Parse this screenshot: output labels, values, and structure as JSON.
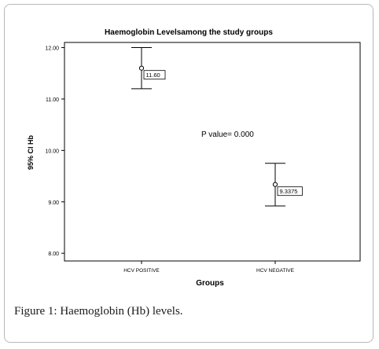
{
  "chart_data": {
    "type": "errorbar",
    "title": "Haemoglobin Levelsamong the study groups",
    "xlabel": "Groups",
    "ylabel": "95% CI Hb",
    "categories": [
      "HCV POSITIVE",
      "HCV NEGATIVE"
    ],
    "series": [
      {
        "means": [
          11.6,
          9.3375
        ],
        "lower": [
          11.2,
          8.92
        ],
        "upper": [
          12.0,
          9.75
        ],
        "point_labels": [
          "11.60",
          "9.3375"
        ]
      }
    ],
    "ylim": [
      7.85,
      12.1
    ],
    "yticks": [
      "12.00",
      "11.00",
      "10.00",
      "9.00",
      "8.00"
    ],
    "ytick_values": [
      12,
      11,
      10,
      9,
      8
    ],
    "annotation": "P  value= 0.000",
    "grid": false,
    "legend": "none"
  },
  "caption": {
    "label": "Figure 1:",
    "text": "Haemoglobin (Hb) levels."
  }
}
